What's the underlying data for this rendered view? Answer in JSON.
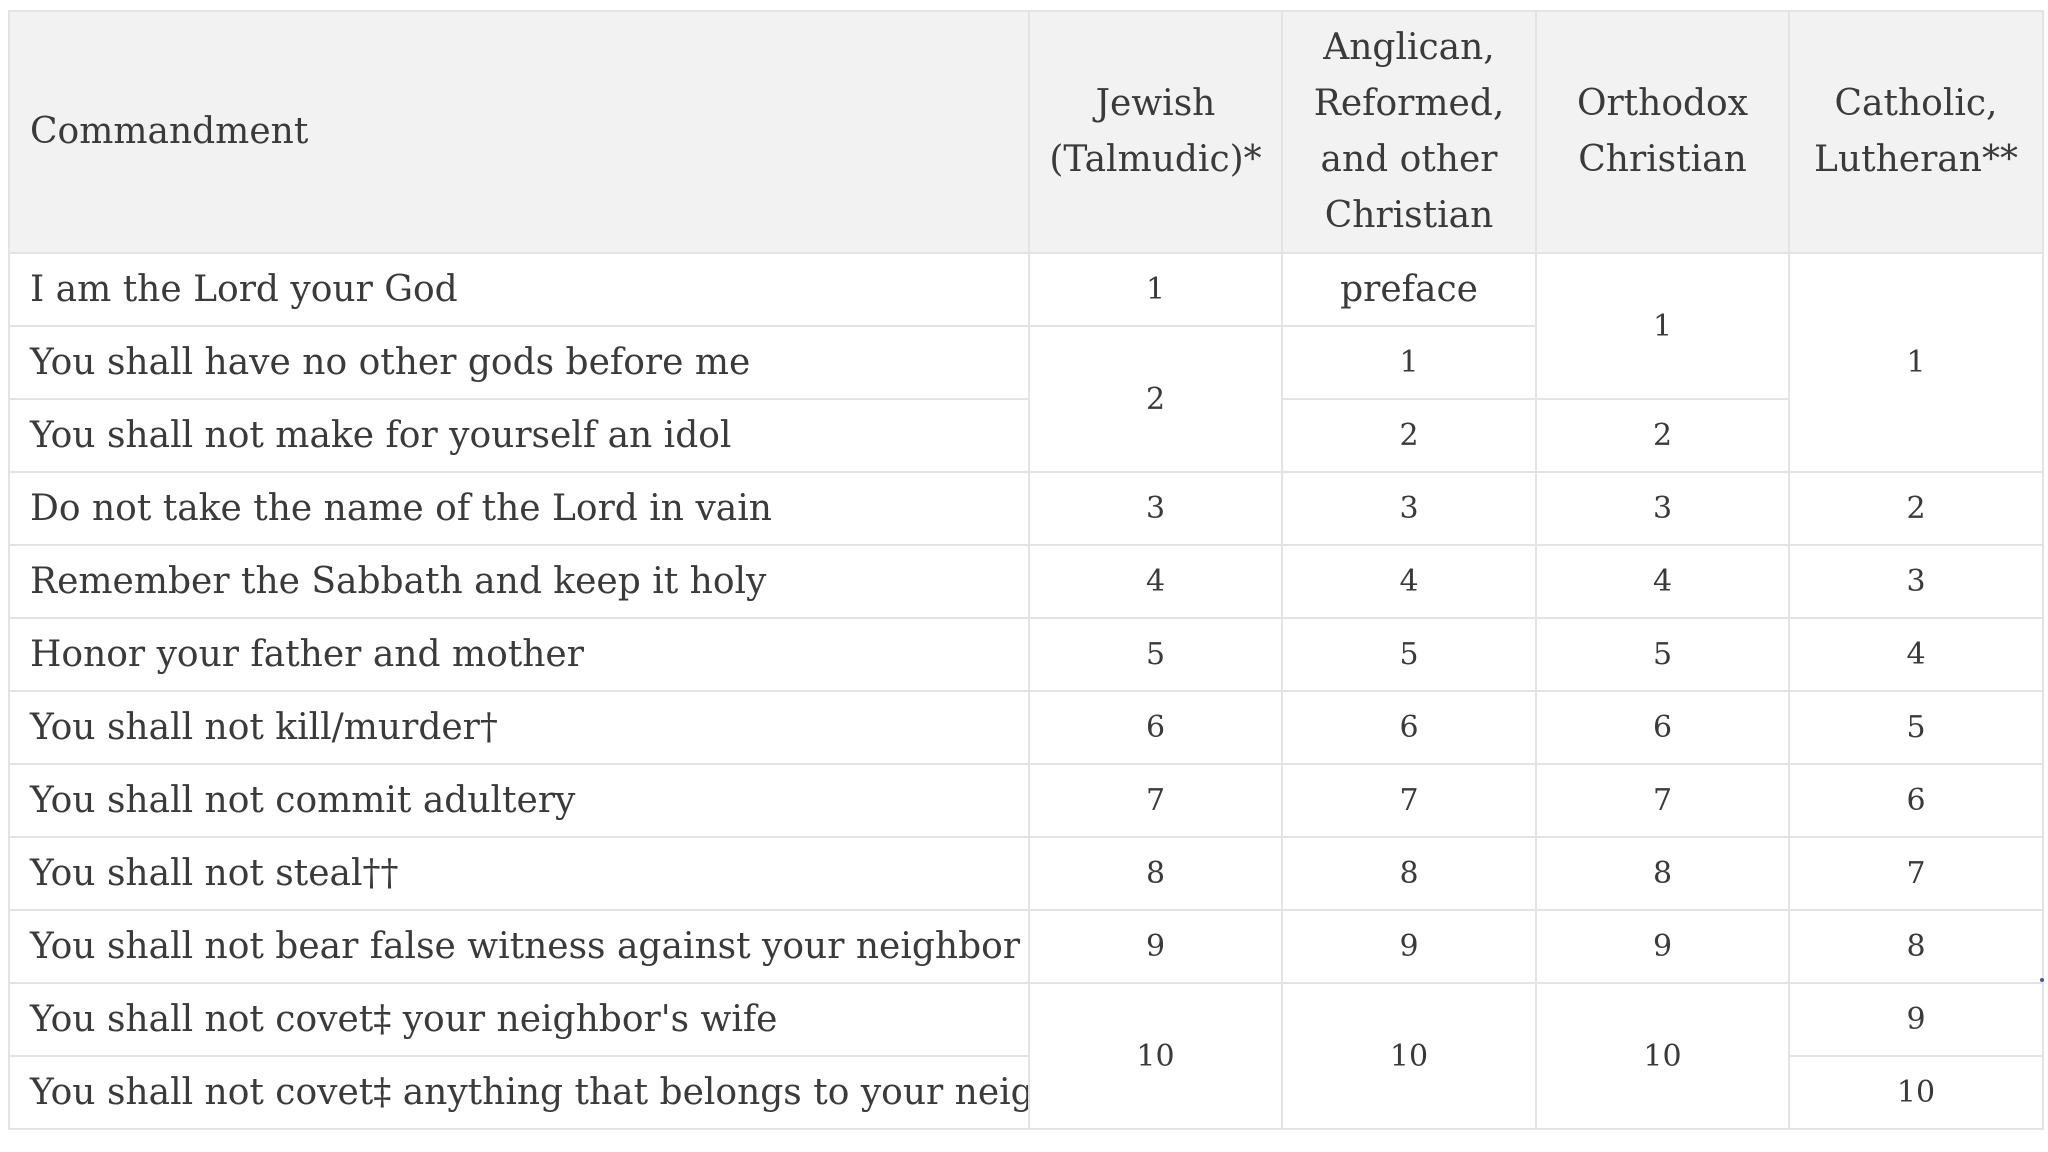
{
  "table": {
    "headers": {
      "commandment": "Commandment",
      "jewish_line1": "Jewish",
      "jewish_line2": "(Talmudic)*",
      "anglican_line1": "Anglican,",
      "anglican_line2": "Reformed,",
      "anglican_line3": "and other",
      "anglican_line4": "Christian",
      "orthodox_line1": "Orthodox",
      "orthodox_line2": "Christian",
      "catholic_line1": "Catholic,",
      "catholic_line2": "Lutheran**"
    },
    "rows": [
      {
        "commandment": "I am the Lord your God",
        "jewish": "1",
        "anglican": "preface",
        "orthodox": "1",
        "catholic": "1"
      },
      {
        "commandment": "You shall have no other gods before me",
        "jewish": "2",
        "anglican": "1"
      },
      {
        "commandment": "You shall not make for yourself an idol",
        "anglican": "2",
        "orthodox": "2"
      },
      {
        "commandment": "Do not take the name of the Lord in vain",
        "jewish": "3",
        "anglican": "3",
        "orthodox": "3",
        "catholic": "2"
      },
      {
        "commandment": "Remember the Sabbath and keep it holy",
        "jewish": "4",
        "anglican": "4",
        "orthodox": "4",
        "catholic": "3"
      },
      {
        "commandment": "Honor your father and mother",
        "jewish": "5",
        "anglican": "5",
        "orthodox": "5",
        "catholic": "4"
      },
      {
        "commandment": "You shall not kill/murder†",
        "jewish": "6",
        "anglican": "6",
        "orthodox": "6",
        "catholic": "5"
      },
      {
        "commandment": "You shall not commit adultery",
        "jewish": "7",
        "anglican": "7",
        "orthodox": "7",
        "catholic": "6"
      },
      {
        "commandment": "You shall not steal††",
        "jewish": "8",
        "anglican": "8",
        "orthodox": "8",
        "catholic": "7"
      },
      {
        "commandment": "You shall not bear false witness against your neighbor",
        "jewish": "9",
        "anglican": "9",
        "orthodox": "9",
        "catholic": "8"
      },
      {
        "commandment": "You shall not covet‡ your neighbor's wife",
        "jewish": "10",
        "anglican": "10",
        "orthodox": "10",
        "catholic": "9"
      },
      {
        "commandment": "You shall not covet‡ anything that belongs to your neighbor",
        "catholic": "10"
      }
    ]
  }
}
